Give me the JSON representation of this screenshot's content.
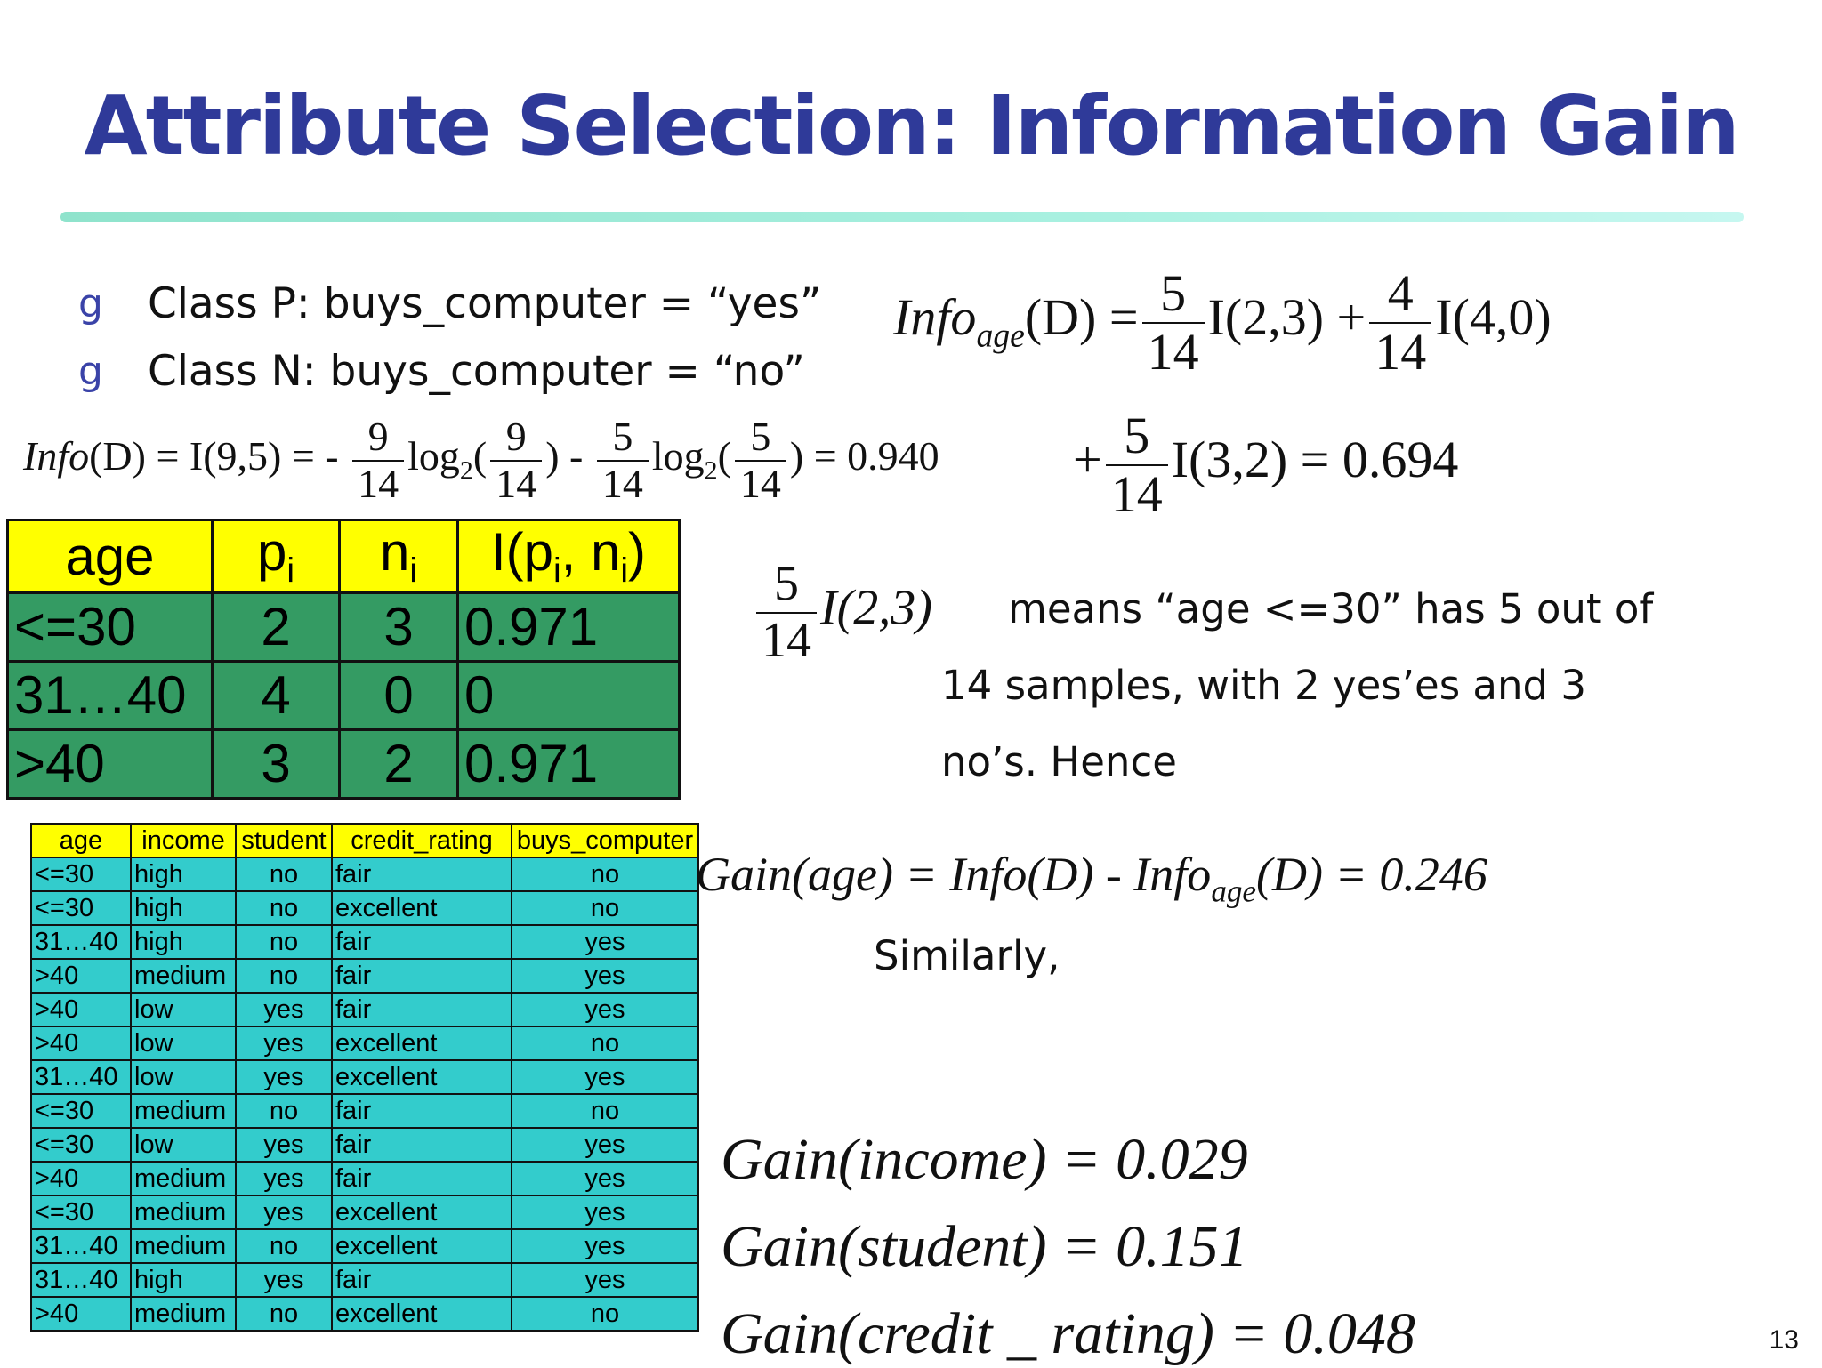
{
  "slide": {
    "title": "Attribute Selection: Information Gain",
    "page_number": "13"
  },
  "bullets": [
    {
      "mark": "g",
      "text": "Class P: buys_computer = “yes”"
    },
    {
      "mark": "g",
      "text": "Class N: buys_computer = “no”"
    }
  ],
  "info_d": {
    "lhs": "Info",
    "lhs2": "(D) = I(9,5) = -",
    "n1": "9",
    "d1": "14",
    "log": "log",
    "log_sub": "2",
    "open_paren": "(",
    "n2": "9",
    "d2": "14",
    "mid": ") -",
    "n3": "5",
    "d3": "14",
    "n4": "5",
    "d4": "14",
    "end": ") = 0.940"
  },
  "info_age": {
    "info": "Info",
    "sub": "age",
    "dpart": "(D) =",
    "n1": "5",
    "d1": "14",
    "term1": "I(2,3) +",
    "n2": "4",
    "d2": "14",
    "term2": "I(4,0)",
    "plus": "+",
    "n3": "5",
    "d3": "14",
    "term3": "I(3,2) = 0.694"
  },
  "explanation": {
    "num": "5",
    "den": "14",
    "term": "I(2,3)",
    "line1": "means “age <=30” has 5 out of",
    "line2": "14 samples, with 2 yes’es  and 3",
    "line3": "no’s.   Hence"
  },
  "gain_age": {
    "gain": "Gain(age) = Info(D) -",
    "info": "Info",
    "sub": "age",
    "rest": "(D) = 0.246"
  },
  "similarly": "Similarly,",
  "gains": [
    "Gain(income) = 0.029",
    "Gain(student) = 0.151",
    "Gain(credit _ rating) = 0.048"
  ],
  "summary_table": {
    "headers": [
      "age",
      "p",
      "n",
      "I(p",
      ", n",
      ")"
    ],
    "header_subs": [
      "i",
      "i",
      "i",
      "i"
    ],
    "rows": [
      [
        "<=30",
        "2",
        "3",
        "0.971"
      ],
      [
        "31…40",
        "4",
        "0",
        "0"
      ],
      [
        ">40",
        "3",
        "2",
        "0.971"
      ]
    ]
  },
  "data_table": {
    "headers": [
      "age",
      "income",
      "student",
      "credit_rating",
      "buys_computer"
    ],
    "rows": [
      [
        "<=30",
        "high",
        "no",
        "fair",
        "no"
      ],
      [
        "<=30",
        "high",
        "no",
        "excellent",
        "no"
      ],
      [
        "31…40",
        "high",
        "no",
        "fair",
        "yes"
      ],
      [
        ">40",
        "medium",
        "no",
        "fair",
        "yes"
      ],
      [
        ">40",
        "low",
        "yes",
        "fair",
        "yes"
      ],
      [
        ">40",
        "low",
        "yes",
        "excellent",
        "no"
      ],
      [
        "31…40",
        "low",
        "yes",
        "excellent",
        "yes"
      ],
      [
        "<=30",
        "medium",
        "no",
        "fair",
        "no"
      ],
      [
        "<=30",
        "low",
        "yes",
        "fair",
        "yes"
      ],
      [
        ">40",
        "medium",
        "yes",
        "fair",
        "yes"
      ],
      [
        "<=30",
        "medium",
        "yes",
        "excellent",
        "yes"
      ],
      [
        "31…40",
        "medium",
        "no",
        "excellent",
        "yes"
      ],
      [
        "31…40",
        "high",
        "yes",
        "fair",
        "yes"
      ],
      [
        ">40",
        "medium",
        "no",
        "excellent",
        "no"
      ]
    ]
  }
}
